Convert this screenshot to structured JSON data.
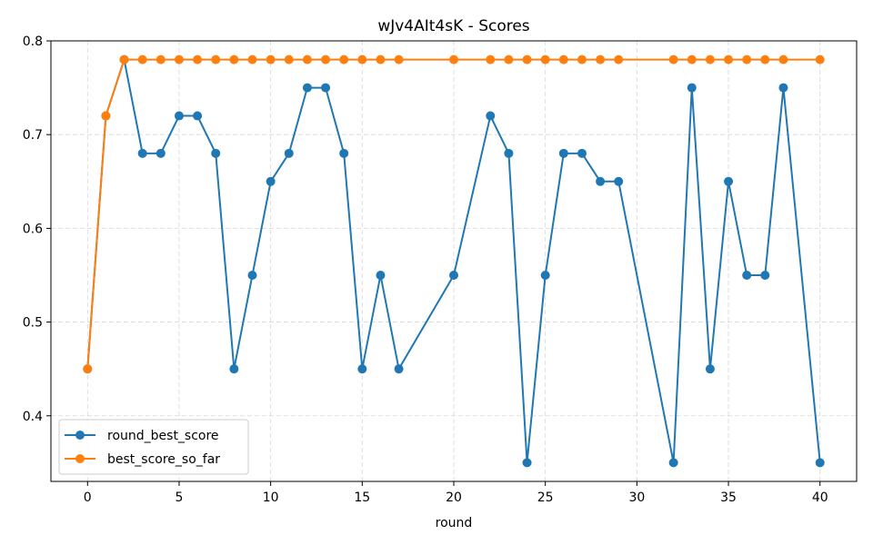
{
  "chart_data": {
    "type": "line",
    "title": "wJv4AIt4sK - Scores",
    "xlabel": "round",
    "ylabel": "",
    "xlim": [
      -2,
      42
    ],
    "ylim": [
      0.33,
      0.8
    ],
    "x_ticks": [
      0,
      5,
      10,
      15,
      20,
      25,
      30,
      35,
      40
    ],
    "y_ticks": [
      0.4,
      0.5,
      0.6,
      0.7,
      0.8
    ],
    "grid": true,
    "legend_position": "lower-left",
    "series": [
      {
        "name": "round_best_score",
        "color": "#1f77b4",
        "x": [
          0,
          1,
          2,
          3,
          4,
          5,
          6,
          7,
          8,
          9,
          10,
          11,
          12,
          13,
          14,
          15,
          16,
          17,
          20,
          22,
          23,
          24,
          25,
          26,
          27,
          28,
          29,
          32,
          33,
          34,
          35,
          36,
          37,
          38,
          40
        ],
        "y": [
          0.45,
          0.72,
          0.78,
          0.68,
          0.68,
          0.72,
          0.72,
          0.68,
          0.45,
          0.55,
          0.65,
          0.68,
          0.75,
          0.75,
          0.68,
          0.45,
          0.55,
          0.45,
          0.55,
          0.72,
          0.68,
          0.35,
          0.55,
          0.68,
          0.68,
          0.65,
          0.65,
          0.35,
          0.75,
          0.45,
          0.65,
          0.55,
          0.55,
          0.75,
          0.35
        ]
      },
      {
        "name": "best_score_so_far",
        "color": "#ff7f0e",
        "x": [
          0,
          1,
          2,
          3,
          4,
          5,
          6,
          7,
          8,
          9,
          10,
          11,
          12,
          13,
          14,
          15,
          16,
          17,
          20,
          22,
          23,
          24,
          25,
          26,
          27,
          28,
          29,
          32,
          33,
          34,
          35,
          36,
          37,
          38,
          40
        ],
        "y": [
          0.45,
          0.72,
          0.78,
          0.78,
          0.78,
          0.78,
          0.78,
          0.78,
          0.78,
          0.78,
          0.78,
          0.78,
          0.78,
          0.78,
          0.78,
          0.78,
          0.78,
          0.78,
          0.78,
          0.78,
          0.78,
          0.78,
          0.78,
          0.78,
          0.78,
          0.78,
          0.78,
          0.78,
          0.78,
          0.78,
          0.78,
          0.78,
          0.78,
          0.78,
          0.78
        ]
      }
    ]
  }
}
